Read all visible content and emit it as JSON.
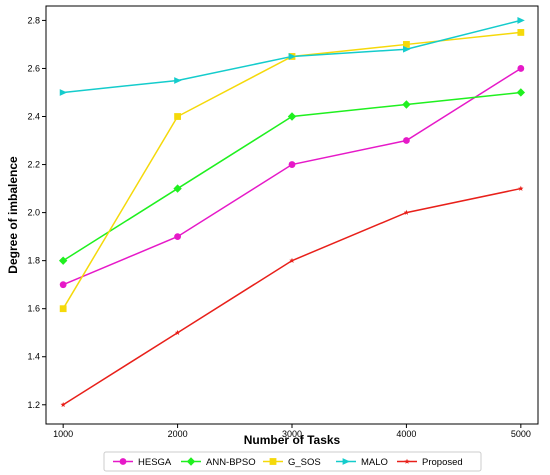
{
  "chart_data": {
    "type": "line",
    "x": [
      1000,
      2000,
      3000,
      4000,
      5000
    ],
    "xticks": [
      "1000",
      "2000",
      "3000",
      "4000",
      "5000"
    ],
    "yticks": [
      "1.2",
      "1.4",
      "1.6",
      "1.8",
      "2.0",
      "2.2",
      "2.4",
      "2.6",
      "2.8"
    ],
    "ytick_values": [
      1.2,
      1.4,
      1.6,
      1.8,
      2.0,
      2.2,
      2.4,
      2.6,
      2.8
    ],
    "xlabel": "Number of Tasks",
    "ylabel": "Degree of imbalence",
    "xlim": [
      850,
      5150
    ],
    "ylim": [
      1.12,
      2.86
    ],
    "grid": false,
    "legend_position": "bottom",
    "series": [
      {
        "name": "HESGA",
        "values": [
          1.7,
          1.9,
          2.2,
          2.3,
          2.6
        ],
        "color": "#e619c8",
        "marker": "circle"
      },
      {
        "name": "ANN-BPSO",
        "values": [
          1.8,
          2.1,
          2.4,
          2.45,
          2.5
        ],
        "color": "#1ff01f",
        "marker": "diamond"
      },
      {
        "name": "G_SOS",
        "values": [
          1.6,
          2.4,
          2.65,
          2.7,
          2.75
        ],
        "color": "#f5d90a",
        "marker": "square"
      },
      {
        "name": "MALO",
        "values": [
          2.5,
          2.55,
          2.65,
          2.68,
          2.8
        ],
        "color": "#14cccc",
        "marker": "triangle-right"
      },
      {
        "name": "Proposed",
        "values": [
          1.2,
          1.5,
          1.8,
          2.0,
          2.1
        ],
        "color": "#e8201a",
        "marker": "star"
      }
    ]
  }
}
